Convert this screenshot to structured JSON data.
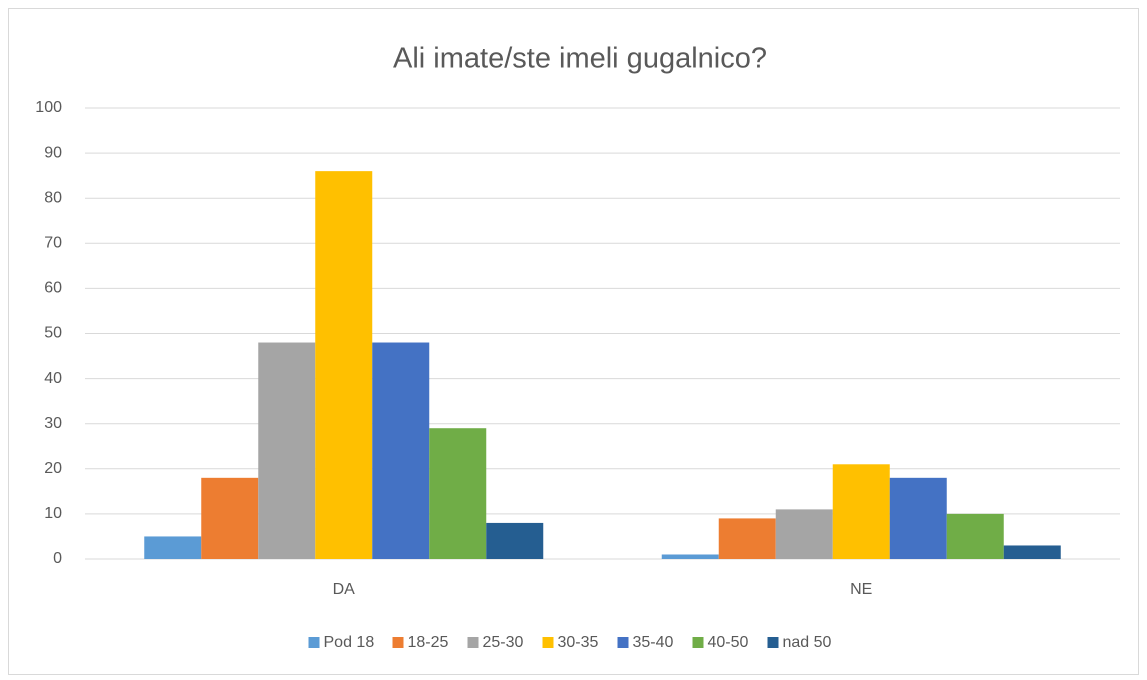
{
  "chart_data": {
    "type": "bar",
    "title": "Ali imate/ste imeli gugalnico?",
    "categories": [
      "DA",
      "NE"
    ],
    "series": [
      {
        "name": "Pod 18",
        "color": "#5b9bd5",
        "values": [
          5,
          1
        ]
      },
      {
        "name": "18-25",
        "color": "#ed7d31",
        "values": [
          18,
          9
        ]
      },
      {
        "name": "25-30",
        "color": "#a5a5a5",
        "values": [
          48,
          11
        ]
      },
      {
        "name": "30-35",
        "color": "#ffc000",
        "values": [
          86,
          21
        ]
      },
      {
        "name": "35-40",
        "color": "#4472c4",
        "values": [
          48,
          18
        ]
      },
      {
        "name": "40-50",
        "color": "#70ad47",
        "values": [
          29,
          10
        ]
      },
      {
        "name": "nad 50",
        "color": "#255e91",
        "values": [
          8,
          3
        ]
      }
    ],
    "ylim": [
      0,
      100
    ],
    "yticks": [
      0,
      10,
      20,
      30,
      40,
      50,
      60,
      70,
      80,
      90,
      100
    ],
    "grid": true,
    "legend": "bottom"
  }
}
